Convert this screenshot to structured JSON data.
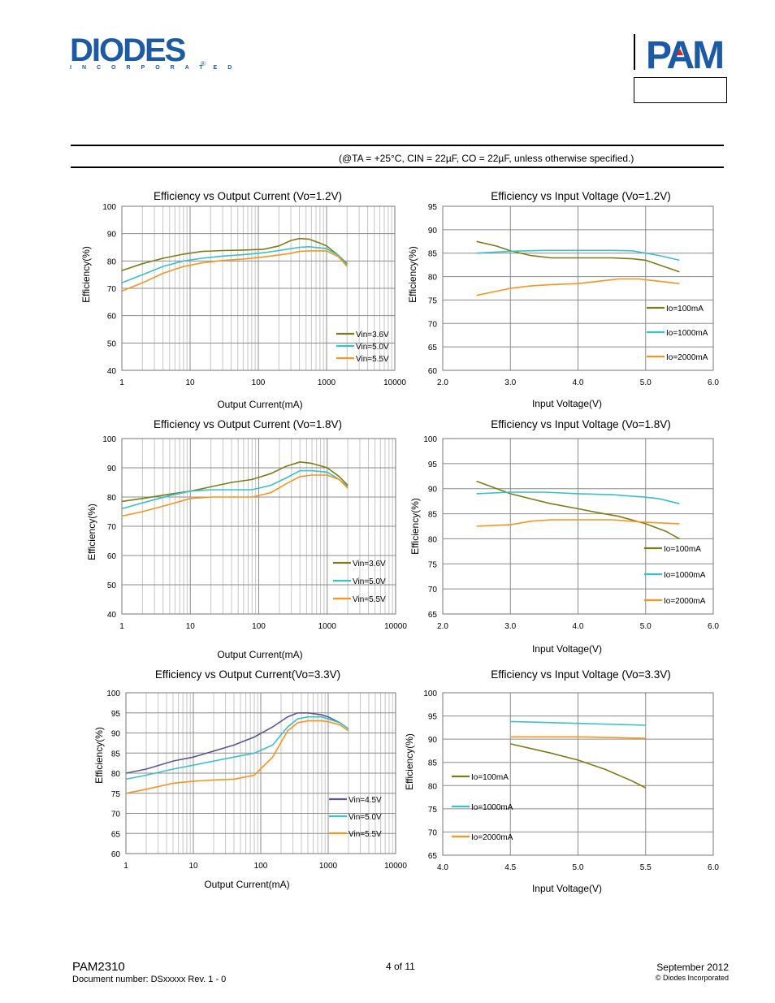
{
  "header": {
    "brand_left": "DIODES",
    "brand_left_sub": "INCORPORATED",
    "brand_left_reg": "®",
    "brand_right": "PAM",
    "brand_color": "#1d5aa6",
    "accent_color": "#e2231a"
  },
  "conditions": "(@TA = +25°C, CIN = 22µF, CO = 22µF, unless otherwise specified.)",
  "footer": {
    "model": "PAM2310",
    "doc_number": "Document number: DSxxxxx Rev. 1 - 0",
    "page": "4 of 11",
    "date": "September 2012",
    "copyright": "© Diodes Incorporated"
  },
  "chart_data": [
    {
      "type": "line",
      "log_x": true,
      "title": "Efficiency vs Output Current (Vo=1.2V)",
      "xlabel": "Output Current(mA)",
      "ylabel": "Efficiency(%)",
      "xticks": [
        1,
        10,
        100,
        1000,
        10000
      ],
      "xtick_labels": [
        "1",
        "10",
        "100",
        "1000",
        "10000"
      ],
      "ylim": [
        40,
        100
      ],
      "yticks": [
        40,
        50,
        60,
        70,
        80,
        90,
        100
      ],
      "series": [
        {
          "name": "Vin=3.6V",
          "color": "#7b7d18",
          "x": [
            1,
            2,
            4,
            8,
            15,
            30,
            60,
            120,
            200,
            300,
            400,
            550,
            800,
            1000,
            1500,
            2000
          ],
          "y": [
            76.5,
            79,
            81,
            82.5,
            83.5,
            83.8,
            84,
            84.3,
            85.5,
            87.5,
            88.2,
            88,
            86.5,
            85.5,
            82,
            79
          ]
        },
        {
          "name": "Vin=5.0V",
          "color": "#39c0c8",
          "x": [
            1,
            2,
            4,
            8,
            15,
            30,
            60,
            120,
            200,
            300,
            400,
            550,
            800,
            1000,
            1500,
            2000
          ],
          "y": [
            72,
            75,
            78,
            80,
            81,
            81.8,
            82.3,
            83,
            83.8,
            84.5,
            85,
            85.2,
            84.8,
            84.5,
            82,
            78.5
          ]
        },
        {
          "name": "Vin=5.5V",
          "color": "#f7941d",
          "x": [
            1,
            2,
            4,
            8,
            15,
            30,
            60,
            120,
            200,
            300,
            400,
            550,
            800,
            1000,
            1500,
            2000
          ],
          "y": [
            69,
            72,
            75.5,
            78,
            79.3,
            80.2,
            80.7,
            81.5,
            82.2,
            82.8,
            83.5,
            83.7,
            83.7,
            83.7,
            81.5,
            78
          ]
        }
      ]
    },
    {
      "type": "line",
      "log_x": false,
      "title": "Efficiency vs Input Voltage (Vo=1.2V)",
      "xlabel": "Input Voltage(V)",
      "ylabel": "Efficiency(%)",
      "xlim": [
        2.0,
        6.0
      ],
      "xticks": [
        2.0,
        3.0,
        4.0,
        5.0,
        6.0
      ],
      "xtick_labels": [
        "2.0",
        "3.0",
        "4.0",
        "5.0",
        "6.0"
      ],
      "ylim": [
        60,
        95
      ],
      "yticks": [
        60,
        65,
        70,
        75,
        80,
        85,
        90,
        95
      ],
      "series": [
        {
          "name": "Io=100mA",
          "color": "#7b7d18",
          "x": [
            2.5,
            2.8,
            3.0,
            3.3,
            3.6,
            4.0,
            4.5,
            4.8,
            5.0,
            5.2,
            5.5
          ],
          "y": [
            87.5,
            86.5,
            85.5,
            84.5,
            84,
            84,
            84,
            83.8,
            83.5,
            82.5,
            81
          ]
        },
        {
          "name": "Io=1000mA",
          "color": "#39c0c8",
          "x": [
            2.5,
            3.0,
            3.5,
            4.0,
            4.5,
            4.8,
            5.0,
            5.2,
            5.5
          ],
          "y": [
            85,
            85.4,
            85.6,
            85.6,
            85.6,
            85.5,
            85,
            84.5,
            83.5
          ]
        },
        {
          "name": "Io=2000mA",
          "color": "#f7941d",
          "x": [
            2.5,
            3.0,
            3.3,
            3.6,
            4.0,
            4.3,
            4.6,
            4.9,
            5.2,
            5.5
          ],
          "y": [
            76,
            77.5,
            78,
            78.3,
            78.5,
            79,
            79.5,
            79.5,
            79,
            78.5
          ]
        }
      ]
    },
    {
      "type": "line",
      "log_x": true,
      "title": "Efficiency vs Output Current (Vo=1.8V)",
      "xlabel": "Output Current(mA)",
      "ylabel": "Efficiency(%)",
      "xticks": [
        1,
        10,
        100,
        1000,
        10000
      ],
      "xtick_labels": [
        "1",
        "10",
        "100",
        "1000",
        "10000"
      ],
      "ylim": [
        40,
        100
      ],
      "yticks": [
        40,
        50,
        60,
        70,
        80,
        90,
        100
      ],
      "series": [
        {
          "name": "Vin=3.6V",
          "color": "#7b7d18",
          "x": [
            1,
            2,
            5,
            10,
            20,
            40,
            80,
            150,
            250,
            400,
            600,
            1000,
            1500,
            2000
          ],
          "y": [
            78.5,
            79.5,
            81,
            82,
            83.5,
            85,
            86,
            88,
            90.5,
            92,
            91.5,
            90,
            87,
            84
          ]
        },
        {
          "name": "Vin=5.0V",
          "color": "#39c0c8",
          "x": [
            1,
            2,
            5,
            10,
            20,
            40,
            80,
            150,
            250,
            400,
            600,
            1000,
            1500,
            2000
          ],
          "y": [
            76,
            78,
            80.5,
            82,
            82.5,
            82.5,
            82.5,
            84,
            86.5,
            89,
            89,
            88.5,
            86,
            83.5
          ]
        },
        {
          "name": "Vin=5.5V",
          "color": "#f7941d",
          "x": [
            1,
            2,
            5,
            10,
            20,
            40,
            80,
            150,
            250,
            400,
            600,
            1000,
            1500,
            2000
          ],
          "y": [
            73.5,
            75,
            77.5,
            79.5,
            80,
            80,
            80,
            81.5,
            84.5,
            87,
            87.5,
            87.5,
            86,
            83
          ]
        }
      ]
    },
    {
      "type": "line",
      "log_x": false,
      "title": "Efficiency vs Input Voltage (Vo=1.8V)",
      "xlabel": "Input Voltage(V)",
      "ylabel": "Efficiency(%)",
      "xlim": [
        2.0,
        6.0
      ],
      "xticks": [
        2.0,
        3.0,
        4.0,
        5.0,
        6.0
      ],
      "xtick_labels": [
        "2.0",
        "3.0",
        "4.0",
        "5.0",
        "6.0"
      ],
      "ylim": [
        65,
        100
      ],
      "yticks": [
        65,
        70,
        75,
        80,
        85,
        90,
        95,
        100
      ],
      "series": [
        {
          "name": "Io=100mA",
          "color": "#7b7d18",
          "x": [
            2.5,
            2.8,
            3.0,
            3.3,
            3.6,
            4.0,
            4.3,
            4.6,
            5.0,
            5.3,
            5.5
          ],
          "y": [
            91.5,
            90,
            89,
            88,
            87,
            86,
            85.2,
            84.5,
            83,
            81.5,
            80
          ]
        },
        {
          "name": "Io=1000mA",
          "color": "#39c0c8",
          "x": [
            2.5,
            3.0,
            3.5,
            4.0,
            4.5,
            5.0,
            5.2,
            5.5
          ],
          "y": [
            89,
            89.3,
            89.3,
            89,
            88.8,
            88.3,
            88,
            87
          ]
        },
        {
          "name": "Io=2000mA",
          "color": "#f7941d",
          "x": [
            2.5,
            2.8,
            3.0,
            3.3,
            3.6,
            4.0,
            4.5,
            5.0,
            5.5
          ],
          "y": [
            82.5,
            82.7,
            82.8,
            83.5,
            83.8,
            83.8,
            83.8,
            83.3,
            83
          ]
        }
      ]
    },
    {
      "type": "line",
      "log_x": true,
      "title": "Efficiency vs Output Current(Vo=3.3V)",
      "xlabel": "Output Current(mA)",
      "ylabel": "Efficiency(%)",
      "xticks": [
        1,
        10,
        100,
        1000,
        10000
      ],
      "xtick_labels": [
        "1",
        "10",
        "100",
        "1000",
        "10000"
      ],
      "ylim": [
        60,
        100
      ],
      "yticks": [
        60,
        65,
        70,
        75,
        80,
        85,
        90,
        95,
        100
      ],
      "series": [
        {
          "name": "Vin=4.5V",
          "color": "#5b5796",
          "x": [
            1,
            2,
            5,
            10,
            20,
            40,
            80,
            150,
            250,
            350,
            500,
            800,
            1000,
            1500,
            2000
          ],
          "y": [
            80,
            81,
            83,
            84,
            85.5,
            87,
            89,
            91.5,
            94,
            95,
            95,
            94.5,
            94,
            92.5,
            91
          ]
        },
        {
          "name": "Vin=5.0V",
          "color": "#39c0c8",
          "x": [
            1,
            2,
            5,
            10,
            20,
            40,
            80,
            150,
            250,
            350,
            500,
            800,
            1000,
            1500,
            2000
          ],
          "y": [
            78.5,
            79.5,
            81,
            82,
            83,
            84,
            85,
            87,
            91.5,
            93.5,
            94,
            94,
            93.5,
            92.5,
            91
          ]
        },
        {
          "name": "Vin=5.5V",
          "color": "#f7941d",
          "x": [
            1,
            2,
            5,
            10,
            20,
            40,
            80,
            150,
            250,
            350,
            500,
            800,
            1000,
            1500,
            2000
          ],
          "y": [
            75,
            76,
            77.5,
            78,
            78.3,
            78.5,
            79.5,
            84,
            90.5,
            92.5,
            93,
            93,
            92.8,
            92,
            90.5
          ]
        }
      ]
    },
    {
      "type": "line",
      "log_x": false,
      "title": "Efficiency vs Input Voltage (Vo=3.3V)",
      "xlabel": "Input Voltage(V)",
      "ylabel": "Efficiency(%)",
      "xlim": [
        4.0,
        6.0
      ],
      "xticks": [
        4.0,
        4.5,
        5.0,
        5.5,
        6.0
      ],
      "xtick_labels": [
        "4.0",
        "4.5",
        "5.0",
        "5.5",
        "6.0"
      ],
      "ylim": [
        65,
        100
      ],
      "yticks": [
        65,
        70,
        75,
        80,
        85,
        90,
        95,
        100
      ],
      "series": [
        {
          "name": "Io=100mA",
          "color": "#7b7d18",
          "x": [
            4.5,
            4.8,
            5.0,
            5.2,
            5.4,
            5.5
          ],
          "y": [
            89,
            87,
            85.5,
            83.5,
            81,
            79.5
          ]
        },
        {
          "name": "Io=1000mA",
          "color": "#39c0c8",
          "x": [
            4.5,
            5.0,
            5.5
          ],
          "y": [
            93.8,
            93.4,
            93
          ]
        },
        {
          "name": "Io=2000mA",
          "color": "#f7941d",
          "x": [
            4.5,
            5.0,
            5.5
          ],
          "y": [
            90.5,
            90.5,
            90.2
          ]
        }
      ]
    }
  ]
}
